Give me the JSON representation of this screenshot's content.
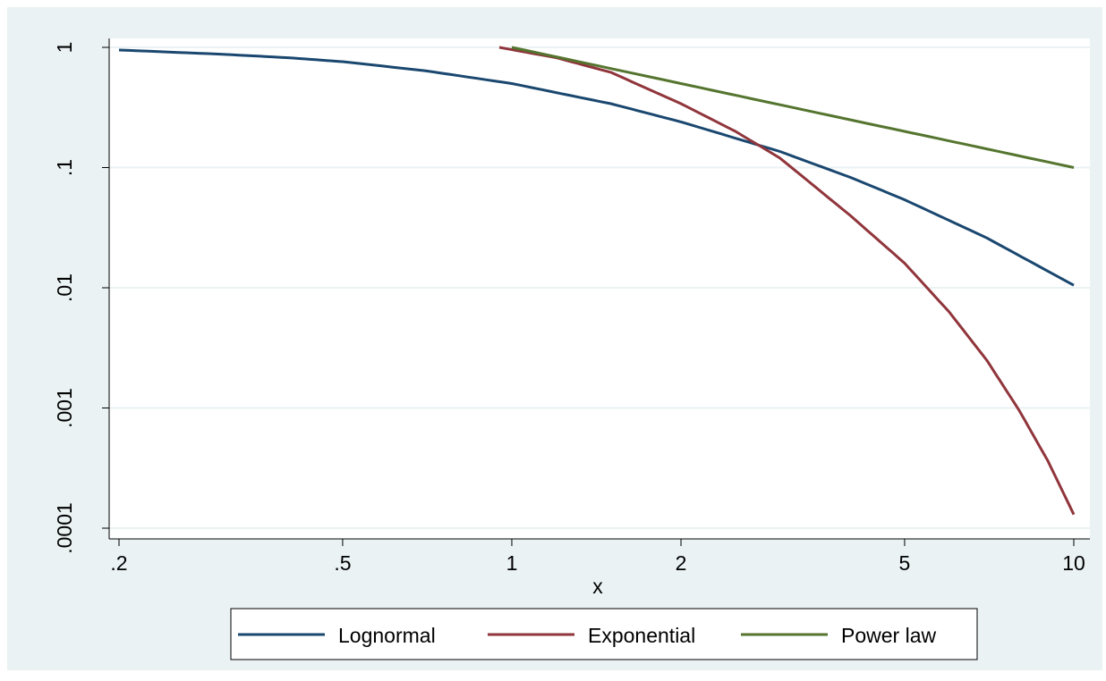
{
  "chart_data": {
    "type": "line",
    "xlabel": "x",
    "ylabel": "",
    "xscale": "log",
    "yscale": "log",
    "xlim": [
      0.2,
      10
    ],
    "ylim": [
      0.0001,
      1
    ],
    "grid": true,
    "legend_position": "bottom",
    "colors": {
      "background": "#eaf2f3",
      "plot_background": "#ffffff",
      "gridline": "#eaf2f3",
      "axis": "#000000"
    },
    "x_ticks": [
      {
        "value": 0.2,
        "label": ".2"
      },
      {
        "value": 0.5,
        "label": ".5"
      },
      {
        "value": 1,
        "label": "1"
      },
      {
        "value": 2,
        "label": "2"
      },
      {
        "value": 5,
        "label": "5"
      },
      {
        "value": 10,
        "label": "10"
      }
    ],
    "y_ticks": [
      {
        "value": 1,
        "label": "1"
      },
      {
        "value": 0.1,
        "label": ".1"
      },
      {
        "value": 0.01,
        "label": ".01"
      },
      {
        "value": 0.001,
        "label": ".001"
      },
      {
        "value": 0.0001,
        "label": ".0001"
      }
    ],
    "series": [
      {
        "name": "Lognormal",
        "color": "#1a476f",
        "x": [
          0.2,
          0.3,
          0.4,
          0.5,
          0.7,
          1,
          1.5,
          2,
          3,
          4,
          5,
          7,
          10
        ],
        "y": [
          0.95,
          0.88,
          0.82,
          0.76,
          0.64,
          0.5,
          0.34,
          0.24,
          0.136,
          0.083,
          0.054,
          0.026,
          0.0105
        ]
      },
      {
        "name": "Exponential",
        "color": "#90353b",
        "x": [
          0.95,
          1.2,
          1.5,
          2,
          2.5,
          3,
          4,
          5,
          6,
          7,
          8,
          9,
          10
        ],
        "y": [
          1.0,
          0.82,
          0.62,
          0.34,
          0.2,
          0.12,
          0.04,
          0.016,
          0.0063,
          0.0025,
          0.00095,
          0.00036,
          0.00013
        ]
      },
      {
        "name": "Power law",
        "color": "#55752f",
        "x": [
          1,
          2,
          3,
          5,
          7,
          10
        ],
        "y": [
          1.0,
          0.5,
          0.333,
          0.2,
          0.143,
          0.1
        ]
      }
    ]
  }
}
